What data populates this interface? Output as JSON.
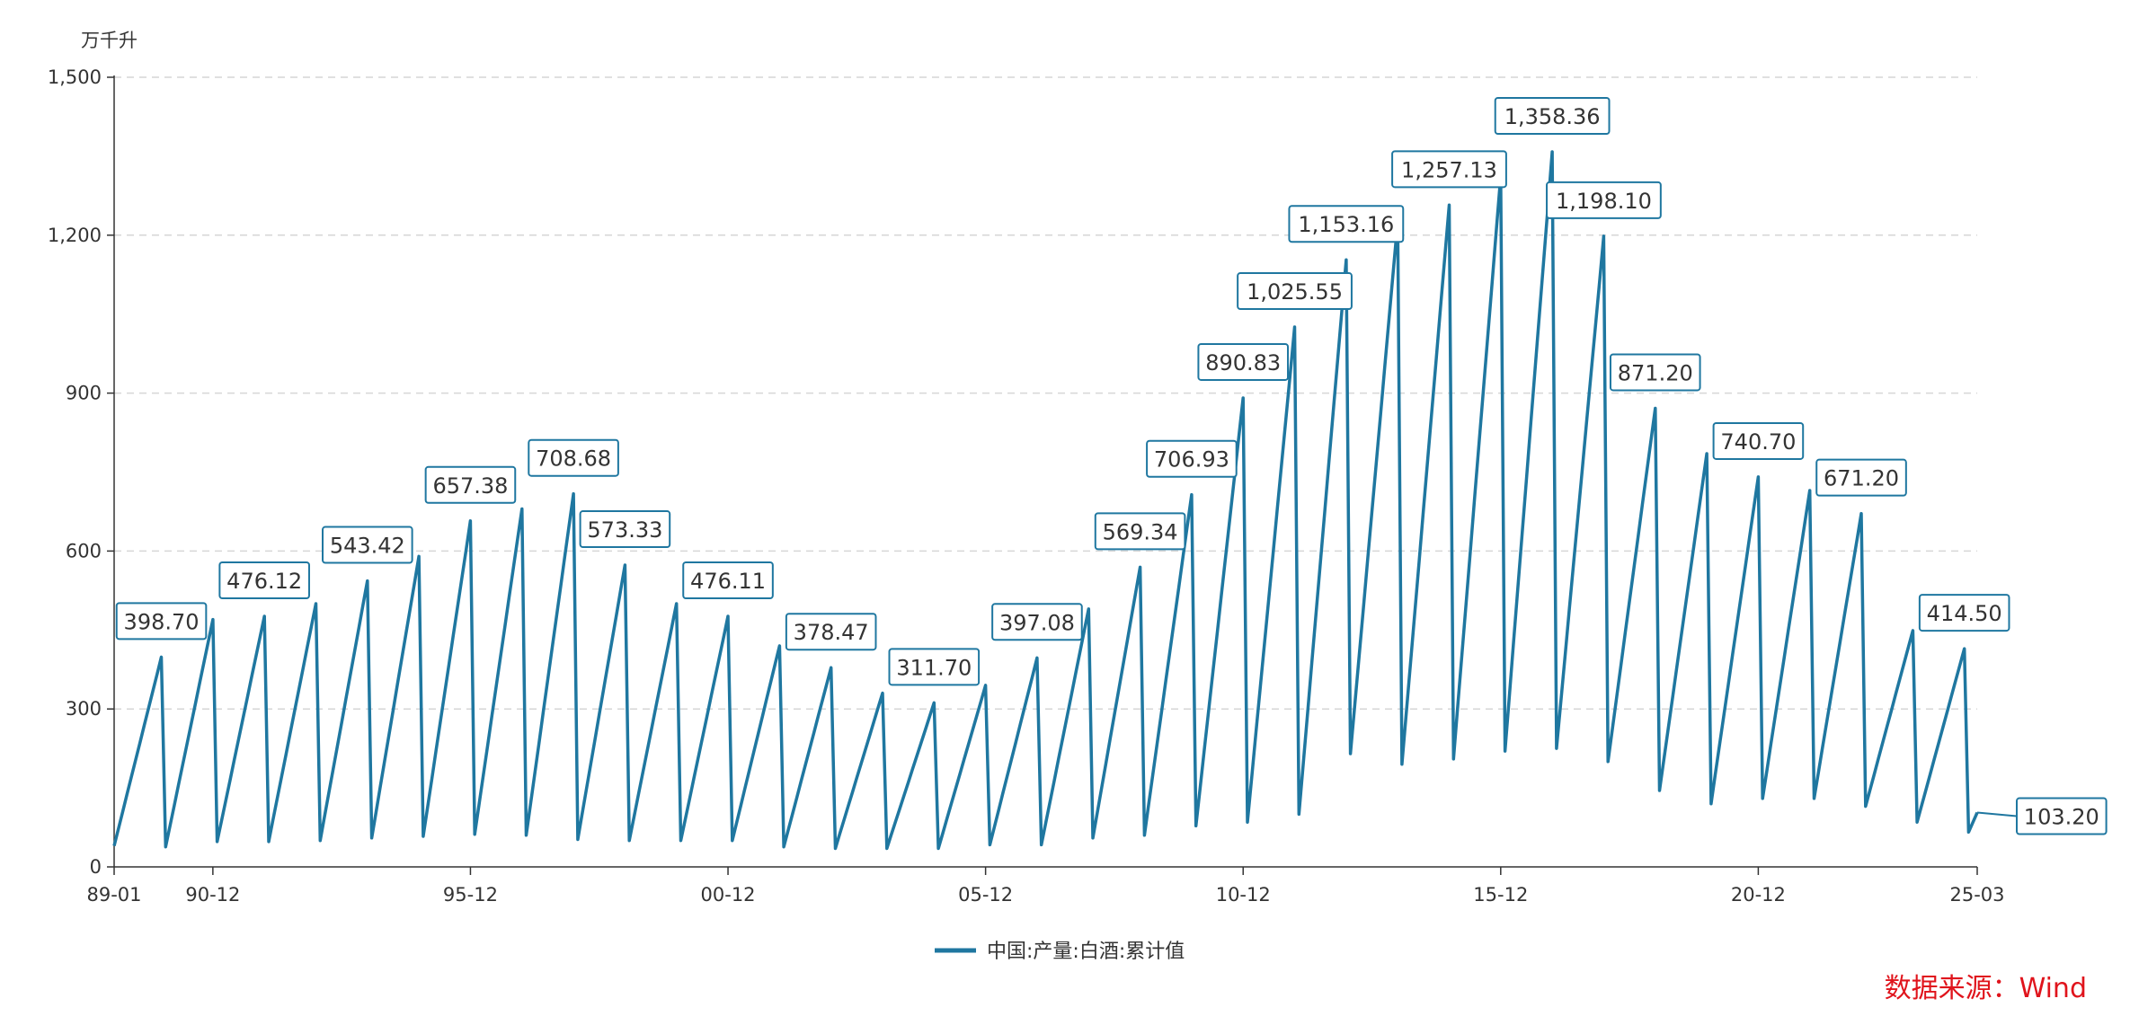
{
  "chart_data": {
    "type": "line",
    "unit": "万千升",
    "ylim": [
      0,
      1500
    ],
    "yticks": [
      0,
      300,
      600,
      900,
      1200,
      1500
    ],
    "ytick_labels": [
      "0",
      "300",
      "600",
      "900",
      "1,200",
      "1,500"
    ],
    "x_start": "89-01",
    "x_end": "25-03",
    "xticks": [
      "89-01",
      "90-12",
      "95-12",
      "00-12",
      "05-12",
      "10-12",
      "15-12",
      "20-12",
      "25-03"
    ],
    "grid": true,
    "legend_position": "bottom",
    "series": [
      {
        "name": "中国:产量:白酒:累计值",
        "color": "#1f77a0",
        "note_format": "yearly cumulative series: start value (Jan) and year-end value (Dec) per year",
        "yearly": [
          {
            "year": 1989,
            "start": 40,
            "end": 398.7
          },
          {
            "year": 1990,
            "start": 38,
            "end": 470
          },
          {
            "year": 1991,
            "start": 48,
            "end": 476.12
          },
          {
            "year": 1992,
            "start": 48,
            "end": 500
          },
          {
            "year": 1993,
            "start": 50,
            "end": 543.42
          },
          {
            "year": 1994,
            "start": 55,
            "end": 590
          },
          {
            "year": 1995,
            "start": 58,
            "end": 657.38
          },
          {
            "year": 1996,
            "start": 62,
            "end": 680
          },
          {
            "year": 1997,
            "start": 60,
            "end": 708.68
          },
          {
            "year": 1998,
            "start": 52,
            "end": 573.33
          },
          {
            "year": 1999,
            "start": 50,
            "end": 500
          },
          {
            "year": 2000,
            "start": 50,
            "end": 476.11
          },
          {
            "year": 2001,
            "start": 50,
            "end": 420
          },
          {
            "year": 2002,
            "start": 38,
            "end": 378.47
          },
          {
            "year": 2003,
            "start": 35,
            "end": 330
          },
          {
            "year": 2004,
            "start": 35,
            "end": 311.7
          },
          {
            "year": 2005,
            "start": 35,
            "end": 345
          },
          {
            "year": 2006,
            "start": 42,
            "end": 397.08
          },
          {
            "year": 2007,
            "start": 42,
            "end": 490
          },
          {
            "year": 2008,
            "start": 55,
            "end": 569.34
          },
          {
            "year": 2009,
            "start": 60,
            "end": 706.93
          },
          {
            "year": 2010,
            "start": 78,
            "end": 890.83
          },
          {
            "year": 2011,
            "start": 85,
            "end": 1025.55
          },
          {
            "year": 2012,
            "start": 100,
            "end": 1153.16
          },
          {
            "year": 2013,
            "start": 215,
            "end": 1226
          },
          {
            "year": 2014,
            "start": 195,
            "end": 1257.13
          },
          {
            "year": 2015,
            "start": 205,
            "end": 1312
          },
          {
            "year": 2016,
            "start": 220,
            "end": 1358.36
          },
          {
            "year": 2017,
            "start": 225,
            "end": 1198.1
          },
          {
            "year": 2018,
            "start": 200,
            "end": 871.2
          },
          {
            "year": 2019,
            "start": 145,
            "end": 785
          },
          {
            "year": 2020,
            "start": 120,
            "end": 740.7
          },
          {
            "year": 2021,
            "start": 130,
            "end": 715
          },
          {
            "year": 2022,
            "start": 130,
            "end": 671.2
          },
          {
            "year": 2023,
            "start": 115,
            "end": 449
          },
          {
            "year": 2024,
            "start": 85,
            "end": 414.5
          }
        ],
        "tail": [
          {
            "date": "25-01",
            "value": 66
          },
          {
            "date": "25-03",
            "value": 103.2
          }
        ]
      }
    ],
    "data_labels": [
      {
        "year": 1989,
        "value": 398.7,
        "text": "398.70"
      },
      {
        "year": 1991,
        "value": 476.12,
        "text": "476.12"
      },
      {
        "year": 1993,
        "value": 543.42,
        "text": "543.42"
      },
      {
        "year": 1995,
        "value": 657.38,
        "text": "657.38"
      },
      {
        "year": 1997,
        "value": 708.68,
        "text": "708.68"
      },
      {
        "year": 1998,
        "value": 573.33,
        "text": "573.33"
      },
      {
        "year": 2000,
        "value": 476.11,
        "text": "476.11"
      },
      {
        "year": 2002,
        "value": 378.47,
        "text": "378.47"
      },
      {
        "year": 2004,
        "value": 311.7,
        "text": "311.70"
      },
      {
        "year": 2006,
        "value": 397.08,
        "text": "397.08"
      },
      {
        "year": 2008,
        "value": 569.34,
        "text": "569.34"
      },
      {
        "year": 2009,
        "value": 706.93,
        "text": "706.93"
      },
      {
        "year": 2010,
        "value": 890.83,
        "text": "890.83"
      },
      {
        "year": 2011,
        "value": 1025.55,
        "text": "1,025.55"
      },
      {
        "year": 2012,
        "value": 1153.16,
        "text": "1,153.16"
      },
      {
        "year": 2014,
        "value": 1257.13,
        "text": "1,257.13"
      },
      {
        "year": 2016,
        "value": 1358.36,
        "text": "1,358.36"
      },
      {
        "year": 2017,
        "value": 1198.1,
        "text": "1,198.10"
      },
      {
        "year": 2018,
        "value": 871.2,
        "text": "871.20"
      },
      {
        "year": 2020,
        "value": 740.7,
        "text": "740.70"
      },
      {
        "year": 2022,
        "value": 671.2,
        "text": "671.20"
      },
      {
        "year": 2024,
        "value": 414.5,
        "text": "414.50"
      },
      {
        "date": "25-03",
        "value": 103.2,
        "text": "103.20"
      }
    ],
    "source": "数据来源：Wind"
  }
}
